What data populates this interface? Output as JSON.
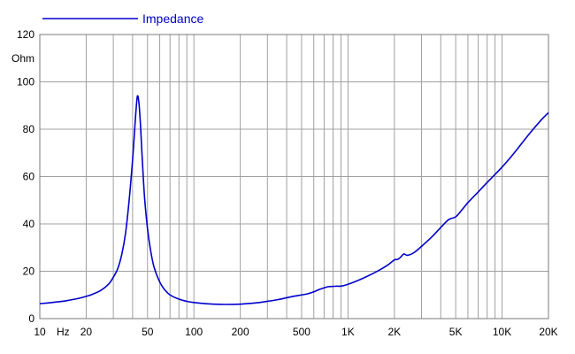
{
  "chart_data": {
    "type": "line",
    "title": "",
    "xlabel": "",
    "ylabel": "",
    "y_unit_label": "Ohm",
    "x_unit_label": "Hz",
    "x_scale": "log",
    "xlim": [
      10,
      20000
    ],
    "ylim": [
      0,
      120
    ],
    "grid": true,
    "legend_position": "top-left",
    "y_ticks": [
      0,
      20,
      40,
      60,
      80,
      100,
      120
    ],
    "x_tick_labels": [
      {
        "value": 10,
        "label": "10"
      },
      {
        "value": 20,
        "label": "20"
      },
      {
        "value": 50,
        "label": "50"
      },
      {
        "value": 100,
        "label": "100"
      },
      {
        "value": 200,
        "label": "200"
      },
      {
        "value": 500,
        "label": "500"
      },
      {
        "value": 1000,
        "label": "1K"
      },
      {
        "value": 2000,
        "label": "2K"
      },
      {
        "value": 5000,
        "label": "5K"
      },
      {
        "value": 10000,
        "label": "10K"
      },
      {
        "value": 20000,
        "label": "20K"
      }
    ],
    "x_gridlines": [
      10,
      20,
      30,
      40,
      50,
      60,
      70,
      80,
      90,
      100,
      200,
      300,
      400,
      500,
      600,
      700,
      800,
      900,
      1000,
      2000,
      3000,
      4000,
      5000,
      6000,
      7000,
      8000,
      9000,
      10000,
      20000
    ],
    "series": [
      {
        "name": "Impedance",
        "color": "#0000cc",
        "x": [
          10,
          12,
          15,
          18,
          20,
          22,
          25,
          28,
          30,
          32,
          34,
          36,
          38,
          40,
          41,
          42,
          43,
          44,
          45,
          46,
          47,
          48,
          50,
          52,
          55,
          60,
          65,
          70,
          80,
          90,
          100,
          120,
          150,
          180,
          200,
          250,
          300,
          350,
          400,
          450,
          500,
          550,
          600,
          650,
          700,
          750,
          800,
          850,
          900,
          1000,
          1200,
          1500,
          1800,
          2000,
          2100,
          2200,
          2300,
          2400,
          2500,
          2700,
          3000,
          3500,
          4000,
          4500,
          5000,
          5500,
          6000,
          7000,
          8000,
          10000,
          12000,
          15000,
          18000,
          20000
        ],
        "y": [
          6.3,
          6.8,
          7.6,
          8.6,
          9.4,
          10.3,
          12.0,
          14.6,
          17.5,
          21.0,
          27.0,
          36.0,
          50.0,
          67.0,
          77.0,
          87.0,
          94.0,
          91.0,
          82.0,
          70.0,
          59.0,
          50.0,
          38.0,
          30.0,
          22.0,
          15.5,
          12.0,
          10.0,
          8.2,
          7.3,
          6.8,
          6.3,
          6.0,
          6.0,
          6.1,
          6.6,
          7.3,
          8.0,
          8.8,
          9.5,
          10.0,
          10.5,
          11.3,
          12.3,
          13.0,
          13.5,
          13.6,
          13.7,
          13.7,
          14.5,
          16.5,
          19.5,
          22.5,
          24.8,
          25.0,
          26.0,
          27.3,
          26.8,
          26.9,
          28.0,
          30.5,
          34.5,
          38.5,
          41.8,
          43.0,
          46.0,
          49.0,
          53.5,
          57.5,
          64.0,
          70.0,
          78.0,
          84.0,
          87.0
        ]
      }
    ]
  }
}
